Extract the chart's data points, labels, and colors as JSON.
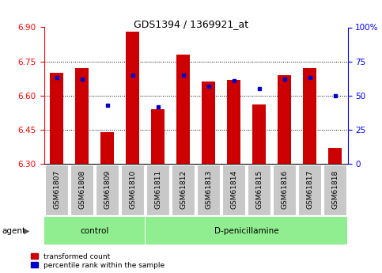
{
  "title": "GDS1394 / 1369921_at",
  "categories": [
    "GSM61807",
    "GSM61808",
    "GSM61809",
    "GSM61810",
    "GSM61811",
    "GSM61812",
    "GSM61813",
    "GSM61814",
    "GSM61815",
    "GSM61816",
    "GSM61817",
    "GSM61818"
  ],
  "red_values": [
    6.7,
    6.72,
    6.44,
    6.88,
    6.54,
    6.78,
    6.66,
    6.67,
    6.56,
    6.69,
    6.72,
    6.37
  ],
  "blue_values": [
    63,
    62,
    43,
    65,
    42,
    65,
    57,
    61,
    55,
    62,
    63,
    50
  ],
  "ymin": 6.3,
  "ymax": 6.9,
  "y2min": 0,
  "y2max": 100,
  "yticks": [
    6.3,
    6.45,
    6.6,
    6.75,
    6.9
  ],
  "y2ticks": [
    0,
    25,
    50,
    75,
    100
  ],
  "bar_color": "#cc0000",
  "blue_color": "#0000cc",
  "n_control": 4,
  "n_treatment": 8,
  "control_label": "control",
  "treatment_label": "D-penicillamine",
  "agent_label": "agent",
  "legend_red": "transformed count",
  "legend_blue": "percentile rank within the sample",
  "bar_width": 0.55,
  "tick_label_bg": "#c8c8c8",
  "group_bg_color": "#90ee90",
  "title_fontsize": 9,
  "axis_fontsize": 7.5,
  "label_fontsize": 6.5,
  "group_fontsize": 7.5,
  "legend_fontsize": 6.5
}
